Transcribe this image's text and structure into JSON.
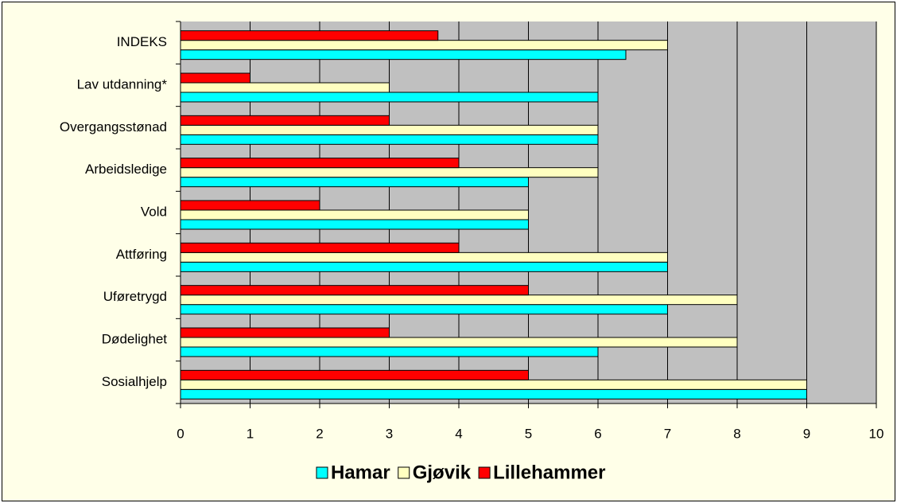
{
  "chart_data": {
    "type": "hbar",
    "categories": [
      "INDEKS",
      "Lav utdanning*",
      "Overgangsstønad",
      "Arbeidsledige",
      "Vold",
      "Attføring",
      "Uføretrygd",
      "Dødelighet",
      "Sosialhjelp"
    ],
    "series": [
      {
        "name": "Hamar",
        "color": "#00ffff",
        "values": [
          6.4,
          6,
          6,
          5,
          5,
          7,
          7,
          6,
          9
        ]
      },
      {
        "name": "Gjøvik",
        "color": "#ffffc0",
        "values": [
          7,
          3,
          6,
          6,
          5,
          7,
          8,
          8,
          9
        ]
      },
      {
        "name": "Lillehammer",
        "color": "#ff0000",
        "values": [
          3.7,
          1,
          3,
          4,
          2,
          4,
          5,
          3,
          5
        ]
      }
    ],
    "xlim": [
      0,
      10
    ],
    "xticks": [
      0,
      1,
      2,
      3,
      4,
      5,
      6,
      7,
      8,
      9,
      10
    ],
    "grid": true
  }
}
